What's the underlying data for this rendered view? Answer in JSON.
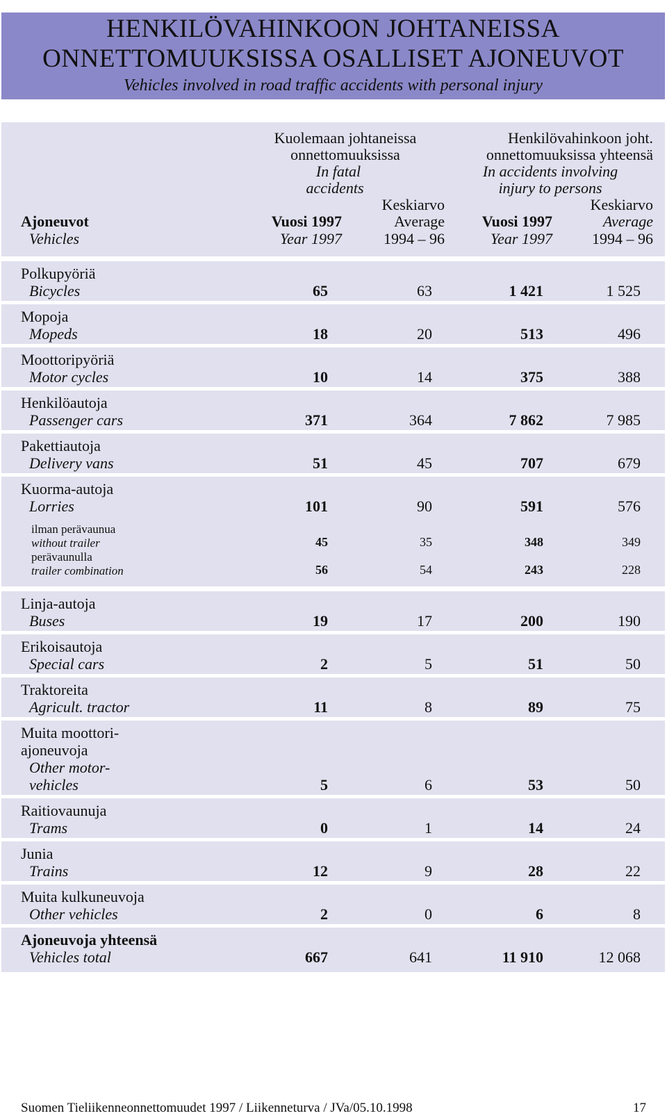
{
  "title": {
    "line1": "HENKILÖVAHINKOON  JOHTANEISSA",
    "line2": "ONNETTOMUUKSISSA  OSALLISET  AJONEUVOT",
    "subtitle": "Vehicles involved in road traffic accidents with personal injury"
  },
  "header": {
    "vehicles_fi": "Ajoneuvot",
    "vehicles_en": "Vehicles",
    "group1_fi_1": "Kuolemaan johtaneissa",
    "group1_fi_2": "onnettomuuksissa",
    "group1_en_1": "In fatal",
    "group1_en_2": "accidents",
    "group2_fi_1": "Henkilövahinkoon joht.",
    "group2_fi_2": "onnettomuuksissa yhteensä",
    "group2_en_1": "In accidents involving",
    "group2_en_2": "injury to persons",
    "year_fi": "Vuosi 1997",
    "year_en": "Year 1997",
    "avg_fi": "Keskiarvo",
    "avg_en": "Average",
    "avg_years": "1994 – 96"
  },
  "rows": [
    {
      "fi": "Polkupyöriä",
      "en": "Bicycles",
      "fatal_1997": "65",
      "fatal_avg": "63",
      "injury_1997": "1 421",
      "injury_avg": "1 525"
    },
    {
      "fi": "Mopoja",
      "en": "Mopeds",
      "fatal_1997": "18",
      "fatal_avg": "20",
      "injury_1997": "513",
      "injury_avg": "496"
    },
    {
      "fi": "Moottoripyöriä",
      "en": "Motor cycles",
      "fatal_1997": "10",
      "fatal_avg": "14",
      "injury_1997": "375",
      "injury_avg": "388"
    },
    {
      "fi": "Henkilöautoja",
      "en": "Passenger cars",
      "fatal_1997": "371",
      "fatal_avg": "364",
      "injury_1997": "7 862",
      "injury_avg": "7 985"
    },
    {
      "fi": "Pakettiautoja",
      "en": "Delivery vans",
      "fatal_1997": "51",
      "fatal_avg": "45",
      "injury_1997": "707",
      "injury_avg": "679"
    },
    {
      "fi": "Kuorma-autoja",
      "en": "Lorries",
      "fatal_1997": "101",
      "fatal_avg": "90",
      "injury_1997": "591",
      "injury_avg": "576"
    },
    {
      "fi": "Linja-autoja",
      "en": "Buses",
      "fatal_1997": "19",
      "fatal_avg": "17",
      "injury_1997": "200",
      "injury_avg": "190"
    },
    {
      "fi": "Erikoisautoja",
      "en": "Special cars",
      "fatal_1997": "2",
      "fatal_avg": "5",
      "injury_1997": "51",
      "injury_avg": "50"
    },
    {
      "fi": "Traktoreita",
      "en": "Agricult. tractor",
      "fatal_1997": "11",
      "fatal_avg": "8",
      "injury_1997": "89",
      "injury_avg": "75"
    },
    {
      "fi_1": "Muita moottori-",
      "fi_2": "ajoneuvoja",
      "en_1": "Other motor-",
      "en_2": "vehicles",
      "fatal_1997": "5",
      "fatal_avg": "6",
      "injury_1997": "53",
      "injury_avg": "50"
    },
    {
      "fi": "Raitiovaunuja",
      "en": "Trams",
      "fatal_1997": "0",
      "fatal_avg": "1",
      "injury_1997": "14",
      "injury_avg": "24"
    },
    {
      "fi": "Junia",
      "en": "Trains",
      "fatal_1997": "12",
      "fatal_avg": "9",
      "injury_1997": "28",
      "injury_avg": "22"
    },
    {
      "fi": "Muita kulkuneuvoja",
      "en": "Other vehicles",
      "fatal_1997": "2",
      "fatal_avg": "0",
      "injury_1997": "6",
      "injury_avg": "8"
    },
    {
      "fi": "Ajoneuvoja yhteensä",
      "en": "Vehicles total",
      "fatal_1997": "667",
      "fatal_avg": "641",
      "injury_1997": "11 910",
      "injury_avg": "12 068"
    }
  ],
  "lorry_subrows": [
    {
      "fi": "ilman perävaunua",
      "en": "without trailer",
      "fatal_1997": "45",
      "fatal_avg": "35",
      "injury_1997": "348",
      "injury_avg": "349"
    },
    {
      "fi": "perävaunulla",
      "en": "trailer combination",
      "fatal_1997": "56",
      "fatal_avg": "54",
      "injury_1997": "243",
      "injury_avg": "228"
    }
  ],
  "footer": {
    "text": "Suomen Tieliikenneonnettomuudet 1997 / Liikenneturva  / JVa/05.10.1998",
    "page": "17"
  },
  "colors": {
    "title_band": "#8b88c9",
    "row_band": "#e1e0ee"
  }
}
